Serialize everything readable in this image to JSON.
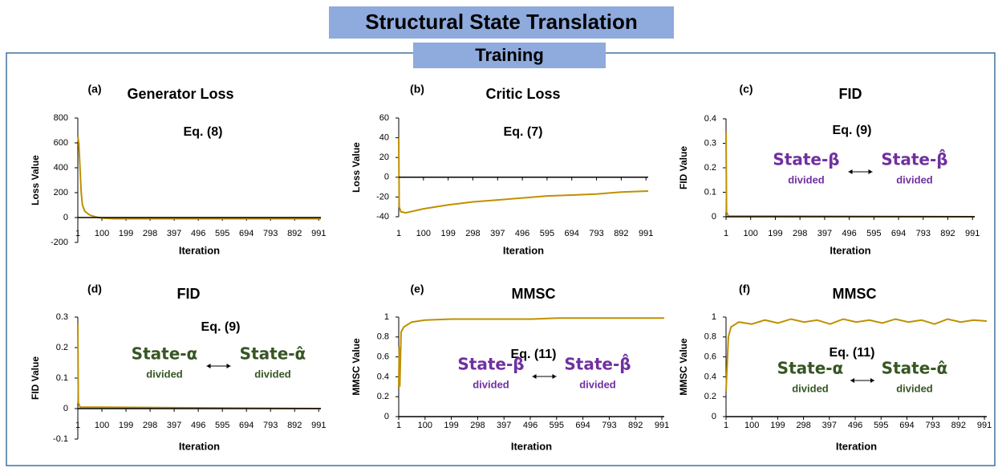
{
  "header": {
    "title": "Structural State Translation",
    "subtitle": "Training"
  },
  "chart_data": [
    {
      "type": "line",
      "panel": "(a)",
      "title": "Generator Loss",
      "equation": "Eq. (8)",
      "ylabel": "Loss Value",
      "xlabel": "Iteration",
      "color": "#bf9000",
      "x": [
        1,
        5,
        10,
        15,
        20,
        30,
        50,
        75,
        100,
        150,
        200,
        300,
        400,
        500,
        600,
        700,
        800,
        900,
        1000
      ],
      "values": [
        650,
        600,
        400,
        200,
        100,
        50,
        20,
        5,
        -5,
        -10,
        -10,
        -10,
        -10,
        -10,
        -10,
        -10,
        -10,
        -10,
        -10
      ],
      "xlim": [
        1,
        1000
      ],
      "xticks": [
        1,
        100,
        199,
        298,
        397,
        496,
        595,
        694,
        793,
        892,
        991
      ],
      "ylim": [
        -200,
        800
      ],
      "yticks": [
        -200,
        0,
        200,
        400,
        600,
        800
      ]
    },
    {
      "type": "line",
      "panel": "(b)",
      "title": "Critic Loss",
      "equation": "Eq. (7)",
      "ylabel": "Loss Value",
      "xlabel": "Iteration",
      "color": "#bf9000",
      "x": [
        1,
        3,
        10,
        30,
        100,
        199,
        298,
        397,
        496,
        595,
        694,
        793,
        892,
        1000
      ],
      "values": [
        40,
        -30,
        -35,
        -36,
        -32,
        -28,
        -25,
        -23,
        -21,
        -19,
        -18,
        -17,
        -15,
        -14
      ],
      "xlim": [
        1,
        1000
      ],
      "xticks": [
        1,
        100,
        199,
        298,
        397,
        496,
        595,
        694,
        793,
        892,
        991
      ],
      "ylim": [
        -40,
        60
      ],
      "yticks": [
        -40,
        -20,
        0,
        20,
        40,
        60
      ]
    },
    {
      "type": "line",
      "panel": "(c)",
      "title": "FID",
      "equation": "Eq. (9)",
      "ylabel": "FID Value",
      "xlabel": "Iteration",
      "color": "#bf9000",
      "state_color": "#7030a0",
      "states": [
        {
          "label": "State-β",
          "note": "divided"
        },
        {
          "label": "State-β̂",
          "note": "divided"
        }
      ],
      "x": [
        1,
        3,
        10,
        1000
      ],
      "values": [
        0.35,
        0.02,
        0.003,
        0
      ],
      "xlim": [
        1,
        1000
      ],
      "xticks": [
        1,
        100,
        199,
        298,
        397,
        496,
        595,
        694,
        793,
        892,
        991
      ],
      "ylim": [
        0,
        0.4
      ],
      "yticks": [
        0,
        0.1,
        0.2,
        0.3,
        0.4
      ]
    },
    {
      "type": "line",
      "panel": "(d)",
      "title": "FID",
      "equation": "Eq. (9)",
      "ylabel": "FID Value",
      "xlabel": "Iteration",
      "color": "#bf9000",
      "state_color": "#375623",
      "states": [
        {
          "label": "State-α",
          "note": "divided"
        },
        {
          "label": "State-α̂",
          "note": "divided"
        }
      ],
      "x": [
        1,
        3,
        10,
        1000
      ],
      "values": [
        0.28,
        0.02,
        0.005,
        0
      ],
      "xlim": [
        1,
        1000
      ],
      "xticks": [
        1,
        100,
        199,
        298,
        397,
        496,
        595,
        694,
        793,
        892,
        991
      ],
      "ylim": [
        -0.1,
        0.3
      ],
      "yticks": [
        -0.1,
        0,
        0.1,
        0.2,
        0.3
      ]
    },
    {
      "type": "line",
      "panel": "(e)",
      "title": "MMSC",
      "equation": "Eq. (11)",
      "ylabel": "MMSC Value",
      "xlabel": "Iteration",
      "color": "#bf9000",
      "state_color": "#7030a0",
      "states": [
        {
          "label": "State-β",
          "note": "divided"
        },
        {
          "label": "State-β̂",
          "note": "divided"
        }
      ],
      "x": [
        1,
        3,
        5,
        10,
        20,
        50,
        100,
        200,
        300,
        400,
        500,
        600,
        700,
        800,
        900,
        1000
      ],
      "values": [
        0.3,
        0.7,
        0.3,
        0.85,
        0.9,
        0.95,
        0.97,
        0.98,
        0.98,
        0.98,
        0.98,
        0.99,
        0.99,
        0.99,
        0.99,
        0.99
      ],
      "xlim": [
        1,
        1000
      ],
      "xticks": [
        1,
        100,
        199,
        298,
        397,
        496,
        595,
        694,
        793,
        892,
        991
      ],
      "ylim": [
        0,
        1
      ],
      "yticks": [
        0,
        0.2,
        0.4,
        0.6,
        0.8,
        1
      ]
    },
    {
      "type": "line",
      "panel": "(f)",
      "title": "MMSC",
      "equation": "Eq. (11)",
      "ylabel": "MMSC Value",
      "xlabel": "Iteration",
      "color": "#bf9000",
      "state_color": "#375623",
      "states": [
        {
          "label": "State-α",
          "note": "divided"
        },
        {
          "label": "State-α̂",
          "note": "divided"
        }
      ],
      "x": [
        1,
        5,
        10,
        20,
        50,
        100,
        150,
        200,
        250,
        300,
        350,
        400,
        450,
        500,
        550,
        600,
        650,
        700,
        750,
        800,
        850,
        900,
        950,
        1000
      ],
      "values": [
        0.25,
        0.5,
        0.8,
        0.9,
        0.95,
        0.93,
        0.97,
        0.94,
        0.98,
        0.95,
        0.97,
        0.93,
        0.98,
        0.95,
        0.97,
        0.94,
        0.98,
        0.95,
        0.97,
        0.93,
        0.98,
        0.95,
        0.97,
        0.96
      ],
      "xlim": [
        1,
        1000
      ],
      "xticks": [
        1,
        100,
        199,
        298,
        397,
        496,
        595,
        694,
        793,
        892,
        991
      ],
      "ylim": [
        0,
        1
      ],
      "yticks": [
        0,
        0.2,
        0.4,
        0.6,
        0.8,
        1
      ]
    }
  ]
}
